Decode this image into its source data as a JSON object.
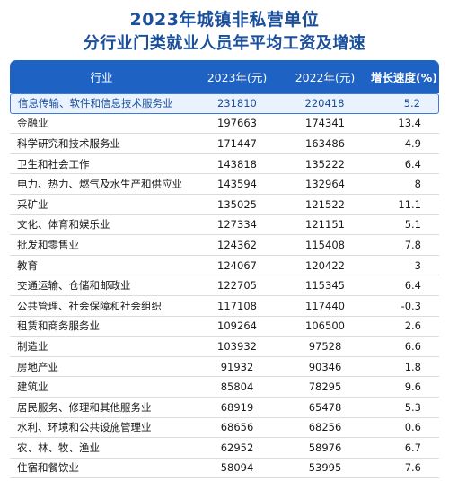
{
  "title_line1": "2023年城镇非私营单位",
  "title_line2": "分行业门类就业人员年平均工资及增速",
  "headers": {
    "industry": "行业",
    "y2023": "2023年(元)",
    "y2022": "2022年(元)",
    "growth": "增长速度(%)"
  },
  "rows": [
    {
      "industry": "信息传输、软件和信息技术服务业",
      "y2023": "231810",
      "y2022": "220418",
      "growth": "5.2"
    },
    {
      "industry": "金融业",
      "y2023": "197663",
      "y2022": "174341",
      "growth": "13.4"
    },
    {
      "industry": "科学研究和技术服务业",
      "y2023": "171447",
      "y2022": "163486",
      "growth": "4.9"
    },
    {
      "industry": "卫生和社会工作",
      "y2023": "143818",
      "y2022": "135222",
      "growth": "6.4"
    },
    {
      "industry": "电力、热力、燃气及水生产和供应业",
      "y2023": "143594",
      "y2022": "132964",
      "growth": "8"
    },
    {
      "industry": "采矿业",
      "y2023": "135025",
      "y2022": "121522",
      "growth": "11.1"
    },
    {
      "industry": "文化、体育和娱乐业",
      "y2023": "127334",
      "y2022": "121151",
      "growth": "5.1"
    },
    {
      "industry": "批发和零售业",
      "y2023": "124362",
      "y2022": "115408",
      "growth": "7.8"
    },
    {
      "industry": "教育",
      "y2023": "124067",
      "y2022": "120422",
      "growth": "3"
    },
    {
      "industry": "交通运输、仓储和邮政业",
      "y2023": "122705",
      "y2022": "115345",
      "growth": "6.4"
    },
    {
      "industry": "公共管理、社会保障和社会组织",
      "y2023": "117108",
      "y2022": "117440",
      "growth": "-0.3"
    },
    {
      "industry": "租赁和商务服务业",
      "y2023": "109264",
      "y2022": "106500",
      "growth": "2.6"
    },
    {
      "industry": "制造业",
      "y2023": "103932",
      "y2022": "97528",
      "growth": "6.6"
    },
    {
      "industry": "房地产业",
      "y2023": "91932",
      "y2022": "90346",
      "growth": "1.8"
    },
    {
      "industry": "建筑业",
      "y2023": "85804",
      "y2022": "78295",
      "growth": "9.6"
    },
    {
      "industry": "居民服务、修理和其他服务业",
      "y2023": "68919",
      "y2022": "65478",
      "growth": "5.3"
    },
    {
      "industry": "水利、环境和公共设施管理业",
      "y2023": "68656",
      "y2022": "68256",
      "growth": "0.6"
    },
    {
      "industry": "农、林、牧、渔业",
      "y2023": "62952",
      "y2022": "58976",
      "growth": "6.7"
    },
    {
      "industry": "住宿和餐饮业",
      "y2023": "58094",
      "y2022": "53995",
      "growth": "7.6"
    }
  ]
}
